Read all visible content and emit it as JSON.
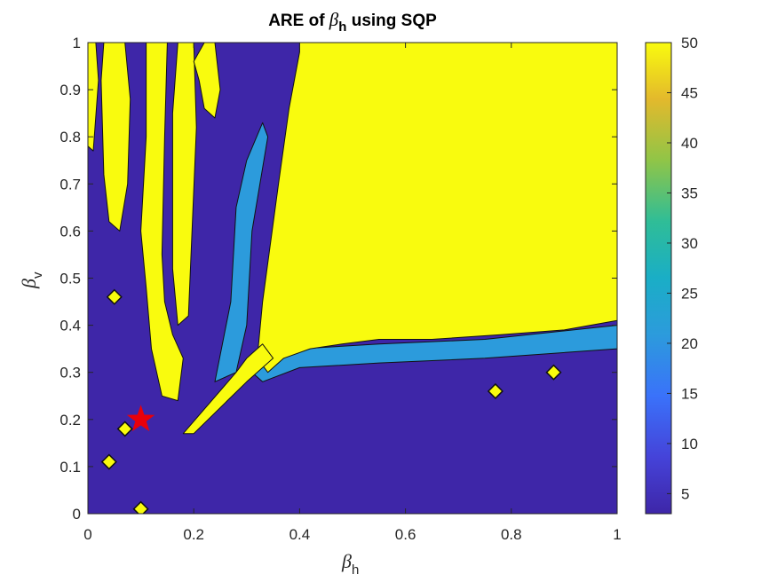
{
  "chart_data": {
    "type": "heatmap",
    "subtype": "filled-contour",
    "title": {
      "prefix": "ARE of ",
      "symbol": "β",
      "subscript": "h",
      "suffix": " using SQP"
    },
    "xlabel": {
      "symbol": "β",
      "subscript": "h"
    },
    "ylabel": {
      "symbol": "β",
      "subscript": "v"
    },
    "xlim": [
      0,
      1
    ],
    "ylim": [
      0,
      1
    ],
    "x_ticks": [
      0,
      0.2,
      0.4,
      0.6,
      0.8,
      1
    ],
    "x_tick_labels": [
      "0",
      "0.2",
      "0.4",
      "0.6",
      "0.8",
      "1"
    ],
    "y_ticks": [
      0,
      0.1,
      0.2,
      0.3,
      0.4,
      0.5,
      0.6,
      0.7,
      0.8,
      0.9,
      1
    ],
    "y_tick_labels": [
      "0",
      "0.1",
      "0.2",
      "0.3",
      "0.4",
      "0.5",
      "0.6",
      "0.7",
      "0.8",
      "0.9",
      "1"
    ],
    "colorbar": {
      "range": [
        3,
        50
      ],
      "ticks": [
        5,
        10,
        15,
        20,
        25,
        30,
        35,
        40,
        45,
        50
      ],
      "tick_labels": [
        "5",
        "10",
        "15",
        "20",
        "25",
        "30",
        "35",
        "40",
        "45",
        "50"
      ],
      "colormap": "parula"
    },
    "colors": {
      "low": "#3e26a8",
      "mid": "#2c9bdc",
      "high": "#f9fb0e",
      "contour_line": "#111111"
    },
    "marker": {
      "shape": "star",
      "x": 0.1,
      "y": 0.2,
      "color": "#e8000b"
    },
    "regions": [
      {
        "level": "high",
        "value": 50,
        "description": "upper-right plateau",
        "polygon": [
          [
            0.4,
            1
          ],
          [
            1,
            1
          ],
          [
            1,
            0.41
          ],
          [
            0.9,
            0.39
          ],
          [
            0.78,
            0.38
          ],
          [
            0.65,
            0.37
          ],
          [
            0.55,
            0.37
          ],
          [
            0.48,
            0.36
          ],
          [
            0.42,
            0.35
          ],
          [
            0.37,
            0.33
          ],
          [
            0.34,
            0.3
          ],
          [
            0.32,
            0.33
          ],
          [
            0.33,
            0.45
          ],
          [
            0.36,
            0.7
          ],
          [
            0.38,
            0.86
          ],
          [
            0.4,
            0.98
          ]
        ]
      },
      {
        "level": "high",
        "value": 50,
        "description": "diagonal ridge",
        "polygon": [
          [
            0.18,
            0.17
          ],
          [
            0.28,
            0.3
          ],
          [
            0.3,
            0.33
          ],
          [
            0.33,
            0.36
          ],
          [
            0.35,
            0.33
          ],
          [
            0.3,
            0.28
          ],
          [
            0.2,
            0.17
          ]
        ]
      },
      {
        "level": "high",
        "value": 50,
        "description": "left column",
        "polygon": [
          [
            0.0,
            1
          ],
          [
            0.015,
            1
          ],
          [
            0.02,
            0.92
          ],
          [
            0.01,
            0.77
          ],
          [
            0.0,
            0.78
          ]
        ]
      },
      {
        "level": "high",
        "value": 50,
        "description": "column 2",
        "polygon": [
          [
            0.03,
            1
          ],
          [
            0.07,
            1
          ],
          [
            0.08,
            0.88
          ],
          [
            0.075,
            0.7
          ],
          [
            0.06,
            0.6
          ],
          [
            0.04,
            0.62
          ],
          [
            0.03,
            0.72
          ],
          [
            0.025,
            0.92
          ]
        ]
      },
      {
        "level": "high",
        "value": 50,
        "description": "column 3",
        "polygon": [
          [
            0.11,
            1
          ],
          [
            0.15,
            1
          ],
          [
            0.145,
            0.8
          ],
          [
            0.14,
            0.55
          ],
          [
            0.145,
            0.45
          ],
          [
            0.16,
            0.38
          ],
          [
            0.18,
            0.33
          ],
          [
            0.17,
            0.24
          ],
          [
            0.14,
            0.25
          ],
          [
            0.12,
            0.35
          ],
          [
            0.11,
            0.48
          ],
          [
            0.1,
            0.6
          ],
          [
            0.11,
            0.8
          ]
        ]
      },
      {
        "level": "high",
        "value": 50,
        "description": "column 4",
        "polygon": [
          [
            0.17,
            1
          ],
          [
            0.2,
            1
          ],
          [
            0.205,
            0.82
          ],
          [
            0.19,
            0.42
          ],
          [
            0.17,
            0.4
          ],
          [
            0.16,
            0.52
          ],
          [
            0.16,
            0.85
          ]
        ]
      },
      {
        "level": "high",
        "value": 50,
        "description": "column 5",
        "polygon": [
          [
            0.2,
            0.96
          ],
          [
            0.22,
            1
          ],
          [
            0.24,
            1
          ],
          [
            0.25,
            0.9
          ],
          [
            0.24,
            0.84
          ],
          [
            0.22,
            0.86
          ],
          [
            0.21,
            0.92
          ]
        ]
      },
      {
        "level": "mid",
        "value": 20,
        "description": "band along plateau edge",
        "polygon": [
          [
            0.31,
            0.3
          ],
          [
            0.4,
            0.35
          ],
          [
            0.55,
            0.36
          ],
          [
            0.75,
            0.37
          ],
          [
            1,
            0.4
          ],
          [
            1,
            0.35
          ],
          [
            0.75,
            0.33
          ],
          [
            0.55,
            0.32
          ],
          [
            0.4,
            0.31
          ],
          [
            0.33,
            0.28
          ]
        ]
      },
      {
        "level": "mid",
        "value": 20,
        "description": "band along ridge",
        "polygon": [
          [
            0.24,
            0.28
          ],
          [
            0.27,
            0.45
          ],
          [
            0.28,
            0.65
          ],
          [
            0.3,
            0.75
          ],
          [
            0.33,
            0.83
          ],
          [
            0.34,
            0.8
          ],
          [
            0.31,
            0.6
          ],
          [
            0.3,
            0.4
          ],
          [
            0.28,
            0.3
          ]
        ]
      },
      {
        "level": "high",
        "value": 50,
        "description": "small islands",
        "islands": [
          [
            0.07,
            0.18
          ],
          [
            0.04,
            0.11
          ],
          [
            0.1,
            0.01
          ],
          [
            0.77,
            0.26
          ],
          [
            0.88,
            0.3
          ],
          [
            0.05,
            0.46
          ]
        ]
      }
    ]
  }
}
